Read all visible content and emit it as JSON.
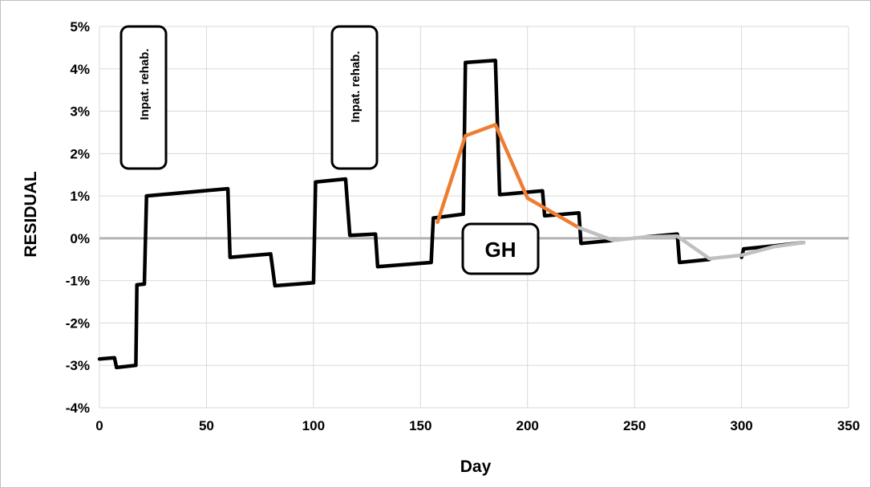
{
  "chart_data": {
    "type": "line",
    "title": "",
    "xlabel": "Day",
    "ylabel": "RESIDUAL",
    "xlim": [
      0,
      350
    ],
    "ylim": [
      -4,
      5
    ],
    "x_ticks": [
      0,
      50,
      100,
      150,
      200,
      250,
      300,
      350
    ],
    "y_ticks": [
      -4,
      -3,
      -2,
      -1,
      0,
      1,
      2,
      3,
      4,
      5
    ],
    "y_tick_suffix": "%",
    "grid": true,
    "legend": "none",
    "series": [
      {
        "color": "#000000",
        "points": [
          [
            0,
            -2.85
          ],
          [
            7,
            -2.82
          ],
          [
            8,
            -3.05
          ],
          [
            17,
            -3.0
          ],
          [
            17.5,
            -1.1
          ],
          [
            21,
            -1.08
          ],
          [
            22,
            1.0
          ],
          [
            60,
            1.17
          ],
          [
            61,
            -0.45
          ],
          [
            80,
            -0.37
          ],
          [
            82,
            -1.12
          ],
          [
            100,
            -1.05
          ],
          [
            101,
            1.33
          ],
          [
            115,
            1.4
          ],
          [
            117,
            0.07
          ],
          [
            129,
            0.1
          ],
          [
            130,
            -0.67
          ],
          [
            155,
            -0.57
          ],
          [
            156,
            0.48
          ],
          [
            170,
            0.57
          ],
          [
            171,
            4.15
          ],
          [
            185,
            4.2
          ],
          [
            187,
            1.03
          ],
          [
            207,
            1.12
          ],
          [
            208,
            0.53
          ],
          [
            224,
            0.6
          ],
          [
            225,
            -0.12
          ],
          [
            240,
            -0.05
          ]
        ]
      },
      {
        "color": "#000000",
        "points": [
          [
            255,
            0.03
          ],
          [
            270,
            0.1
          ],
          [
            271,
            -0.57
          ],
          [
            285,
            -0.5
          ]
        ]
      },
      {
        "color": "#000000",
        "points": [
          [
            300,
            -0.45
          ],
          [
            301,
            -0.25
          ],
          [
            315,
            -0.18
          ],
          [
            329,
            -0.1
          ]
        ]
      },
      {
        "color": "#ED7D31",
        "points": [
          [
            158,
            0.38
          ],
          [
            171,
            2.42
          ],
          [
            185,
            2.68
          ],
          [
            200,
            0.95
          ],
          [
            224,
            0.25
          ]
        ]
      },
      {
        "color": "#C0C0C0",
        "points": [
          [
            224,
            0.25
          ],
          [
            240,
            -0.05
          ],
          [
            255,
            0.03
          ],
          [
            270,
            0.05
          ],
          [
            285,
            -0.48
          ],
          [
            300,
            -0.4
          ],
          [
            315,
            -0.2
          ],
          [
            329,
            -0.1
          ]
        ]
      }
    ],
    "annotations": [
      {
        "text": "Inpat. rehab."
      },
      {
        "text": "Inpat. rehab."
      },
      {
        "text": "GH"
      }
    ]
  }
}
